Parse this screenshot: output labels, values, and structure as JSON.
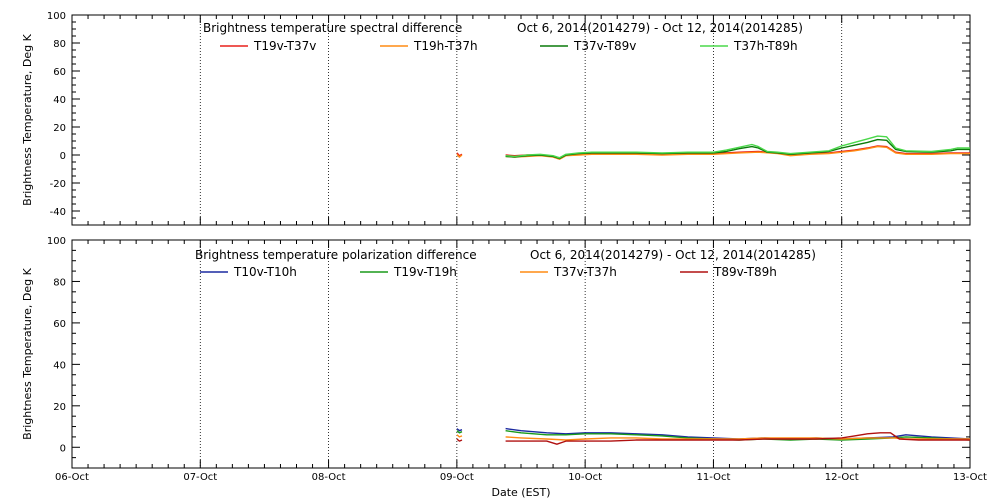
{
  "chart_data": [
    {
      "type": "line",
      "title": "Brightness temperature spectral difference",
      "date_range": "Oct  6, 2014(2014279) - Oct 12, 2014(2014285)",
      "ylabel": "Brightness Temperature, Deg K",
      "xlabel": "",
      "xlim": [
        0,
        7
      ],
      "ylim": [
        -50,
        100
      ],
      "yticks": [
        "-40",
        "-20",
        "0",
        "20",
        "40",
        "60",
        "80",
        "100"
      ],
      "ytick_values": [
        -40,
        -20,
        0,
        20,
        40,
        60,
        80,
        100
      ],
      "xtick_labels": [],
      "legend_position": "top",
      "series": [
        {
          "name": "T19v-T37v",
          "color": "#e8201c",
          "points": [
            [
              3.0,
              1.5
            ],
            [
              3.02,
              -0.5
            ],
            [
              3.04,
              0.5
            ],
            null,
            [
              3.38,
              0
            ],
            [
              3.45,
              -0.5
            ],
            [
              3.55,
              0
            ],
            [
              3.65,
              0
            ],
            [
              3.75,
              -1
            ],
            [
              3.8,
              -2
            ],
            [
              3.85,
              0
            ],
            [
              3.95,
              0.5
            ],
            [
              4.05,
              1
            ],
            [
              4.2,
              1
            ],
            [
              4.4,
              1
            ],
            [
              4.6,
              0.5
            ],
            [
              4.8,
              1
            ],
            [
              5.0,
              1
            ],
            [
              5.2,
              2
            ],
            [
              5.35,
              2.5
            ],
            [
              5.5,
              1.5
            ],
            [
              5.6,
              0
            ],
            [
              5.75,
              1
            ],
            [
              5.9,
              1.5
            ],
            [
              6.0,
              2.5
            ],
            [
              6.1,
              3.5
            ],
            [
              6.2,
              5
            ],
            [
              6.28,
              6.5
            ],
            [
              6.35,
              6
            ],
            [
              6.42,
              2
            ],
            [
              6.5,
              1
            ],
            [
              6.7,
              1
            ],
            [
              6.85,
              1.5
            ],
            [
              7.0,
              1.5
            ]
          ]
        },
        {
          "name": "T19h-T37h",
          "color": "#ff8c14",
          "points": [
            [
              3.0,
              0.5
            ],
            [
              3.02,
              -1.5
            ],
            [
              3.04,
              0
            ],
            null,
            [
              3.38,
              -1
            ],
            [
              3.45,
              -1.5
            ],
            [
              3.55,
              -1
            ],
            [
              3.65,
              -0.5
            ],
            [
              3.75,
              -1.5
            ],
            [
              3.8,
              -3
            ],
            [
              3.85,
              -0.5
            ],
            [
              3.95,
              0
            ],
            [
              4.05,
              0.5
            ],
            [
              4.2,
              0.5
            ],
            [
              4.4,
              0.5
            ],
            [
              4.6,
              0
            ],
            [
              4.8,
              0.5
            ],
            [
              5.0,
              0.5
            ],
            [
              5.2,
              1.5
            ],
            [
              5.35,
              2
            ],
            [
              5.5,
              1
            ],
            [
              5.6,
              -0.5
            ],
            [
              5.75,
              0.5
            ],
            [
              5.9,
              1
            ],
            [
              6.0,
              2
            ],
            [
              6.1,
              3
            ],
            [
              6.2,
              4.5
            ],
            [
              6.28,
              6
            ],
            [
              6.35,
              5.5
            ],
            [
              6.42,
              1.5
            ],
            [
              6.5,
              0.5
            ],
            [
              6.7,
              0.5
            ],
            [
              6.85,
              1
            ],
            [
              7.0,
              1
            ]
          ]
        },
        {
          "name": "T37v-T89v",
          "color": "#0a7a0a",
          "points": [
            [
              3.38,
              -1
            ],
            [
              3.45,
              -1.5
            ],
            [
              3.55,
              -0.5
            ],
            [
              3.65,
              0
            ],
            [
              3.75,
              -1
            ],
            [
              3.8,
              -2.5
            ],
            [
              3.85,
              0
            ],
            [
              3.95,
              1
            ],
            [
              4.05,
              1.5
            ],
            [
              4.2,
              1.5
            ],
            [
              4.4,
              1.5
            ],
            [
              4.6,
              1
            ],
            [
              4.8,
              1.5
            ],
            [
              5.0,
              1.5
            ],
            [
              5.1,
              2.5
            ],
            [
              5.2,
              4.5
            ],
            [
              5.3,
              6
            ],
            [
              5.35,
              5
            ],
            [
              5.42,
              2
            ],
            [
              5.5,
              1.5
            ],
            [
              5.6,
              0.5
            ],
            [
              5.75,
              1.5
            ],
            [
              5.9,
              2.5
            ],
            [
              6.0,
              5
            ],
            [
              6.1,
              7
            ],
            [
              6.2,
              9
            ],
            [
              6.28,
              11
            ],
            [
              6.35,
              10.5
            ],
            [
              6.42,
              4
            ],
            [
              6.5,
              2.5
            ],
            [
              6.7,
              2
            ],
            [
              6.85,
              3
            ],
            [
              6.9,
              4
            ],
            [
              7.0,
              4
            ]
          ]
        },
        {
          "name": "T37h-T89h",
          "color": "#4ad84a",
          "points": [
            [
              3.38,
              -0.5
            ],
            [
              3.45,
              -1
            ],
            [
              3.55,
              0
            ],
            [
              3.65,
              0.5
            ],
            [
              3.75,
              -0.5
            ],
            [
              3.8,
              -2
            ],
            [
              3.85,
              0.5
            ],
            [
              3.95,
              1.5
            ],
            [
              4.05,
              2
            ],
            [
              4.2,
              2
            ],
            [
              4.4,
              2
            ],
            [
              4.6,
              1.5
            ],
            [
              4.8,
              2
            ],
            [
              5.0,
              2
            ],
            [
              5.1,
              3.5
            ],
            [
              5.2,
              5.5
            ],
            [
              5.3,
              7.5
            ],
            [
              5.35,
              6
            ],
            [
              5.42,
              2.5
            ],
            [
              5.5,
              2
            ],
            [
              5.6,
              1
            ],
            [
              5.75,
              2
            ],
            [
              5.9,
              3
            ],
            [
              6.0,
              6.5
            ],
            [
              6.1,
              9
            ],
            [
              6.2,
              11.5
            ],
            [
              6.28,
              13.5
            ],
            [
              6.35,
              13
            ],
            [
              6.42,
              5
            ],
            [
              6.5,
              3
            ],
            [
              6.7,
              2.5
            ],
            [
              6.85,
              4
            ],
            [
              6.9,
              5
            ],
            [
              7.0,
              5
            ]
          ]
        }
      ]
    },
    {
      "type": "line",
      "title": "Brightness temperature polarization difference",
      "date_range": "Oct  6, 2014(2014279) - Oct 12, 2014(2014285)",
      "ylabel": "Brightness Temperature, Deg K",
      "xlabel": "Date (EST)",
      "xlim": [
        0,
        7
      ],
      "ylim": [
        -10,
        100
      ],
      "yticks": [
        "0",
        "20",
        "40",
        "60",
        "80",
        "100"
      ],
      "ytick_values": [
        0,
        20,
        40,
        60,
        80,
        100
      ],
      "xtick_labels": [
        "06-Oct",
        "07-Oct",
        "08-Oct",
        "09-Oct",
        "10-Oct",
        "11-Oct",
        "12-Oct",
        "13-Oct"
      ],
      "legend_position": "top",
      "series": [
        {
          "name": "T10v-T10h",
          "color": "#1c2aa0",
          "points": [
            [
              3.0,
              9
            ],
            [
              3.02,
              8
            ],
            [
              3.04,
              8.5
            ],
            null,
            [
              3.38,
              9
            ],
            [
              3.5,
              8
            ],
            [
              3.7,
              7
            ],
            [
              3.85,
              6.5
            ],
            [
              4.0,
              7
            ],
            [
              4.2,
              7
            ],
            [
              4.4,
              6.5
            ],
            [
              4.6,
              6
            ],
            [
              4.8,
              5
            ],
            [
              5.0,
              4.5
            ],
            [
              5.2,
              4
            ],
            [
              5.4,
              4.5
            ],
            [
              5.6,
              4
            ],
            [
              5.8,
              4.5
            ],
            [
              6.0,
              4
            ],
            [
              6.2,
              4.5
            ],
            [
              6.4,
              5
            ],
            [
              6.5,
              6
            ],
            [
              6.7,
              5
            ],
            [
              6.85,
              4.5
            ],
            [
              7.0,
              4
            ]
          ]
        },
        {
          "name": "T19v-T19h",
          "color": "#1a9a1a",
          "points": [
            [
              3.0,
              8
            ],
            [
              3.02,
              7
            ],
            [
              3.04,
              7.5
            ],
            null,
            [
              3.38,
              8
            ],
            [
              3.5,
              7
            ],
            [
              3.7,
              6
            ],
            [
              3.85,
              6
            ],
            [
              4.0,
              6.5
            ],
            [
              4.2,
              6.5
            ],
            [
              4.4,
              6
            ],
            [
              4.6,
              5.5
            ],
            [
              4.8,
              4.5
            ],
            [
              5.0,
              4
            ],
            [
              5.2,
              3.5
            ],
            [
              5.4,
              4
            ],
            [
              5.6,
              3.5
            ],
            [
              5.8,
              4
            ],
            [
              6.0,
              3.5
            ],
            [
              6.2,
              4
            ],
            [
              6.4,
              4.5
            ],
            [
              6.5,
              5
            ],
            [
              6.7,
              4.5
            ],
            [
              6.85,
              4
            ],
            [
              7.0,
              3.5
            ]
          ]
        },
        {
          "name": "T37v-T37h",
          "color": "#ff8c14",
          "points": [
            [
              3.0,
              6
            ],
            [
              3.02,
              5
            ],
            [
              3.04,
              5.5
            ],
            null,
            [
              3.38,
              5
            ],
            [
              3.5,
              4.5
            ],
            [
              3.7,
              4
            ],
            [
              3.85,
              3.5
            ],
            [
              4.0,
              4
            ],
            [
              4.2,
              4.5
            ],
            [
              4.4,
              4.5
            ],
            [
              4.6,
              4
            ],
            [
              4.8,
              4
            ],
            [
              5.0,
              4
            ],
            [
              5.2,
              4
            ],
            [
              5.4,
              4.5
            ],
            [
              5.6,
              4.5
            ],
            [
              5.8,
              4.5
            ],
            [
              6.0,
              4
            ],
            [
              6.2,
              4.5
            ],
            [
              6.4,
              4.5
            ],
            [
              6.5,
              4
            ],
            [
              6.7,
              4
            ],
            [
              6.85,
              4
            ],
            [
              7.0,
              4
            ]
          ]
        },
        {
          "name": "T89v-T89h",
          "color": "#b01010",
          "points": [
            [
              3.0,
              4
            ],
            [
              3.02,
              3
            ],
            [
              3.04,
              3.5
            ],
            null,
            [
              3.38,
              3
            ],
            [
              3.5,
              3
            ],
            [
              3.7,
              3
            ],
            [
              3.78,
              1.5
            ],
            [
              3.85,
              3
            ],
            [
              4.0,
              3
            ],
            [
              4.2,
              3
            ],
            [
              4.4,
              3.5
            ],
            [
              4.6,
              3.5
            ],
            [
              4.8,
              3.5
            ],
            [
              5.0,
              3.5
            ],
            [
              5.2,
              3.5
            ],
            [
              5.4,
              4
            ],
            [
              5.6,
              4
            ],
            [
              5.8,
              4
            ],
            [
              6.0,
              4.5
            ],
            [
              6.1,
              5.5
            ],
            [
              6.2,
              6.5
            ],
            [
              6.3,
              7
            ],
            [
              6.38,
              7
            ],
            [
              6.45,
              4
            ],
            [
              6.6,
              3.5
            ],
            [
              6.8,
              3.5
            ],
            [
              7.0,
              3.5
            ]
          ]
        }
      ]
    }
  ]
}
